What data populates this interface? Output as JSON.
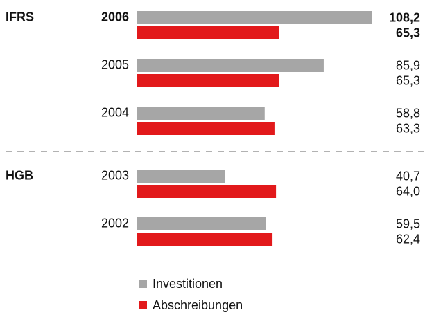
{
  "chart_data": {
    "type": "bar",
    "orientation": "horizontal",
    "categories": [
      "2006",
      "2005",
      "2004",
      "2003",
      "2002"
    ],
    "group_labels": [
      "IFRS",
      null,
      null,
      "HGB",
      null
    ],
    "highlight_index": 0,
    "series": [
      {
        "name": "Investitionen",
        "color": "#a6a6a6",
        "values": [
          108.2,
          85.9,
          58.8,
          40.7,
          59.5
        ],
        "value_labels": [
          "108,2",
          "85,9",
          "58,8",
          "40,7",
          "59,5"
        ]
      },
      {
        "name": "Abschreibungen",
        "color": "#e2191b",
        "values": [
          65.3,
          65.3,
          63.3,
          64.0,
          62.4
        ],
        "value_labels": [
          "65,3",
          "65,3",
          "63,3",
          "64,0",
          "62,4"
        ]
      }
    ],
    "legend": "bottom"
  }
}
